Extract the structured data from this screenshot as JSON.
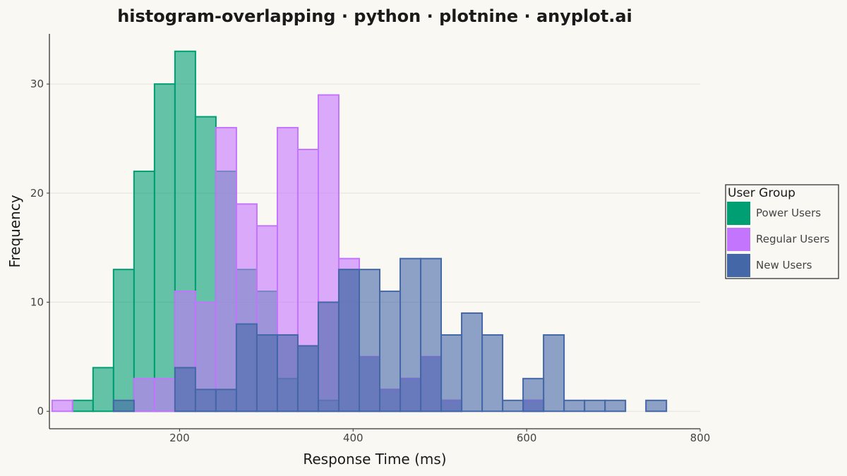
{
  "chart_data": {
    "type": "histogram",
    "title": "histogram-overlapping · python · plotnine · anyplot.ai",
    "xlabel": "Response Time (ms)",
    "ylabel": "Frequency",
    "xlim": [
      50,
      800
    ],
    "ylim": [
      -1.6,
      34.6
    ],
    "x_ticks": [
      200,
      400,
      600,
      800
    ],
    "y_ticks": [
      0,
      10,
      20,
      30
    ],
    "grid": "horizontal",
    "bin_width": 23.6,
    "bin_start": 53.1,
    "legend": {
      "title": "User Group",
      "position": "right"
    },
    "series": [
      {
        "name": "Power Users",
        "color": "#009E73",
        "counts": [
          0,
          1,
          4,
          13,
          22,
          30,
          33,
          27,
          22,
          13,
          11,
          3,
          6,
          1,
          13,
          5,
          2,
          3,
          5,
          1,
          0,
          0,
          0,
          1,
          0,
          0,
          0,
          0,
          0,
          0,
          0
        ]
      },
      {
        "name": "Regular Users",
        "color": "#C475FD",
        "counts": [
          1,
          0,
          0,
          0,
          3,
          3,
          11,
          10,
          26,
          19,
          17,
          26,
          24,
          29,
          14,
          5,
          2,
          3,
          5,
          1,
          0,
          0,
          0,
          1,
          0,
          0,
          0,
          0,
          0,
          0,
          0
        ]
      },
      {
        "name": "New Users",
        "color": "#4467A8",
        "counts": [
          0,
          0,
          0,
          1,
          0,
          0,
          4,
          2,
          2,
          8,
          7,
          7,
          6,
          10,
          13,
          13,
          11,
          14,
          14,
          7,
          9,
          7,
          1,
          3,
          7,
          1,
          1,
          1,
          0,
          1,
          0
        ]
      }
    ]
  }
}
